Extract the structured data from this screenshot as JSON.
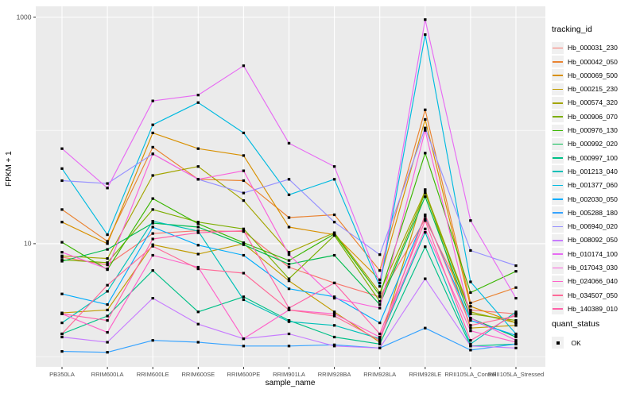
{
  "chart_data": {
    "type": "line",
    "title": "",
    "xlabel": "sample_name",
    "ylabel": "FPKM + 1",
    "y_scale": "log10",
    "y_major_ticks": [
      10,
      1000
    ],
    "y_major_tick_labels": [
      "10",
      "1000"
    ],
    "y_minor_gridlines": [
      1,
      100
    ],
    "ylim_log": [
      0.82,
      3.1
    ],
    "grid": true,
    "panel_bg": "#EBEBEB",
    "grid_color": "#FFFFFF",
    "tick_label_color": "#4D4D4D",
    "marker": "black-square",
    "categories": [
      "PB350LA",
      "RRIM600LA",
      "RRIM600LE",
      "RRIM600SE",
      "RRIM600PE",
      "RRIM901LA",
      "RRIM928BA",
      "RRIM928LA",
      "RRIM928LE",
      "RRII105LA_Control",
      "RRII105LA_Stressed"
    ],
    "series": [
      {
        "name": "Hb_000031_230",
        "color": "#F8766D",
        "values": [
          7.6,
          6.5,
          12.3,
          13.0,
          12.8,
          6.2,
          4.5,
          3.4,
          16.5,
          2.6,
          2.4
        ]
      },
      {
        "name": "Hb_000042_050",
        "color": "#EA8331",
        "values": [
          20,
          10.5,
          71,
          37,
          36,
          17,
          18,
          5.8,
          152,
          3.0,
          4.1
        ]
      },
      {
        "name": "Hb_000069_500",
        "color": "#D89000",
        "values": [
          15.5,
          10,
          95,
          69,
          60,
          14,
          12,
          4.8,
          125,
          2.8,
          2.0
        ]
      },
      {
        "name": "Hb_000215_230",
        "color": "#C09B00",
        "values": [
          2.45,
          2.6,
          9.8,
          8.1,
          10,
          4.7,
          2.5,
          1.35,
          30,
          1.8,
          1.9
        ]
      },
      {
        "name": "Hb_000574_320",
        "color": "#A3A500",
        "values": [
          7.8,
          7.4,
          40,
          48,
          24,
          8.4,
          12.5,
          3.7,
          29,
          2.5,
          2.0
        ]
      },
      {
        "name": "Hb_000906_070",
        "color": "#7CAE00",
        "values": [
          7.2,
          6.8,
          20,
          15.5,
          13.5,
          4.9,
          11.8,
          3.1,
          28,
          2.4,
          2.1
        ]
      },
      {
        "name": "Hb_000976_130",
        "color": "#39B600",
        "values": [
          10.3,
          5.9,
          25,
          15,
          10.2,
          7.1,
          12.2,
          3.5,
          63,
          3.7,
          5.7
        ]
      },
      {
        "name": "Hb_000992_020",
        "color": "#00BB4E",
        "values": [
          7.0,
          8.9,
          15.2,
          14,
          9.8,
          6.6,
          7.9,
          2.9,
          26,
          2.2,
          1.5
        ]
      },
      {
        "name": "Hb_000997_100",
        "color": "#00C087",
        "values": [
          1.6,
          2.3,
          5.8,
          2.5,
          3.4,
          2.1,
          1.5,
          1.3,
          9.4,
          1.25,
          1.3
        ]
      },
      {
        "name": "Hb_001213_040",
        "color": "#00C0B8",
        "values": [
          2.0,
          3.8,
          15.8,
          12.9,
          3.2,
          2.05,
          1.9,
          1.45,
          12.6,
          1.3,
          2.5
        ]
      },
      {
        "name": "Hb_001377_060",
        "color": "#00BAE0",
        "values": [
          46,
          12,
          112,
          176,
          95,
          27,
          37,
          4.2,
          700,
          4.6,
          1.6
        ]
      },
      {
        "name": "Hb_002030_050",
        "color": "#00ACFC",
        "values": [
          3.6,
          2.9,
          14,
          9.7,
          7.9,
          4.0,
          3.4,
          2.0,
          17.5,
          2.1,
          1.55
        ]
      },
      {
        "name": "Hb_005288_180",
        "color": "#35A2FF",
        "values": [
          1.12,
          1.1,
          1.4,
          1.35,
          1.25,
          1.25,
          1.28,
          1.2,
          1.8,
          1.15,
          1.3
        ]
      },
      {
        "name": "Hb_006940_020",
        "color": "#9590FF",
        "values": [
          36,
          34,
          62,
          37,
          28,
          37,
          15.5,
          8.0,
          105,
          8.7,
          6.4
        ]
      },
      {
        "name": "Hb_008092_050",
        "color": "#C77CFF",
        "values": [
          1.5,
          1.35,
          3.3,
          1.95,
          1.45,
          1.6,
          1.25,
          1.2,
          4.9,
          1.25,
          1.2
        ]
      },
      {
        "name": "Hb_010174_100",
        "color": "#E76BF3",
        "values": [
          69,
          31,
          182,
          205,
          372,
          77,
          48,
          4.5,
          950,
          16,
          3.3
        ]
      },
      {
        "name": "Hb_017043_030",
        "color": "#FA62DB",
        "values": [
          8.4,
          6.0,
          62,
          37,
          44,
          8.0,
          3.3,
          2.7,
          100,
          2.2,
          1.4
        ]
      },
      {
        "name": "Hb_024066_040",
        "color": "#FF61C9",
        "values": [
          2.4,
          1.65,
          7.9,
          6.2,
          1.45,
          2.6,
          2.4,
          1.5,
          13.5,
          1.7,
          1.35
        ]
      },
      {
        "name": "Hb_034507_050",
        "color": "#FF6A98",
        "values": [
          1.6,
          4.3,
          9.5,
          6.0,
          5.5,
          2.6,
          2.3,
          1.4,
          18,
          1.9,
          2.3
        ]
      },
      {
        "name": "Hb_140389_010",
        "color": "#FF61A8",
        "values": [
          2.4,
          2.1,
          11,
          12.5,
          13,
          2.7,
          4.5,
          1.6,
          16,
          1.4,
          2.4
        ]
      }
    ],
    "legend": {
      "title": "tracking_id",
      "position": "right",
      "quant_title": "quant_status",
      "quant_items": [
        {
          "label": "OK",
          "marker": "black-square"
        }
      ]
    }
  }
}
